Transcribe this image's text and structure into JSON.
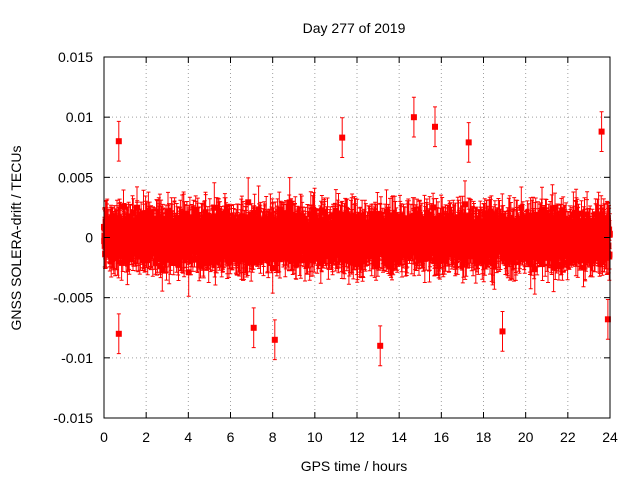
{
  "chart_data": {
    "type": "scatter",
    "title": "Day 277 of 2019",
    "xlabel": "GPS time / hours",
    "ylabel": "GNSS SOLERA-drift / TECUs",
    "xlim": [
      0,
      24
    ],
    "ylim": [
      -0.015,
      0.015
    ],
    "xticks": [
      0,
      2,
      4,
      6,
      8,
      10,
      12,
      14,
      16,
      18,
      20,
      22,
      24
    ],
    "xtick_labels": [
      "0",
      "2",
      "4",
      "6",
      "8",
      "10",
      "12",
      "14",
      "16",
      "18",
      "20",
      "22",
      "24"
    ],
    "yticks": [
      -0.015,
      -0.01,
      -0.005,
      0,
      0.005,
      0.01,
      0.015
    ],
    "ytick_labels": [
      "-0.015",
      "-0.01",
      "-0.005",
      "0",
      "0.005",
      "0.01",
      "0.015"
    ],
    "grid": true,
    "series": [
      {
        "name": "SOLERA drift",
        "color": "#ff0000",
        "marker": "square",
        "error_bars": true,
        "n_points": 2880,
        "x_start": 0,
        "x_step_hours": 0.008333,
        "mean": 0.0,
        "typical_spread": 0.0028,
        "typical_error": 0.0015,
        "notable_points": [
          {
            "x": 0.7,
            "y": 0.008
          },
          {
            "x": 0.7,
            "y": -0.008
          },
          {
            "x": 7.1,
            "y": -0.0075
          },
          {
            "x": 8.1,
            "y": -0.0085
          },
          {
            "x": 11.3,
            "y": 0.0083
          },
          {
            "x": 13.1,
            "y": -0.009
          },
          {
            "x": 14.7,
            "y": 0.01
          },
          {
            "x": 15.7,
            "y": 0.0092
          },
          {
            "x": 17.3,
            "y": 0.0079
          },
          {
            "x": 18.9,
            "y": -0.0078
          },
          {
            "x": 23.6,
            "y": 0.0088
          },
          {
            "x": 23.9,
            "y": -0.0068
          }
        ]
      }
    ]
  }
}
